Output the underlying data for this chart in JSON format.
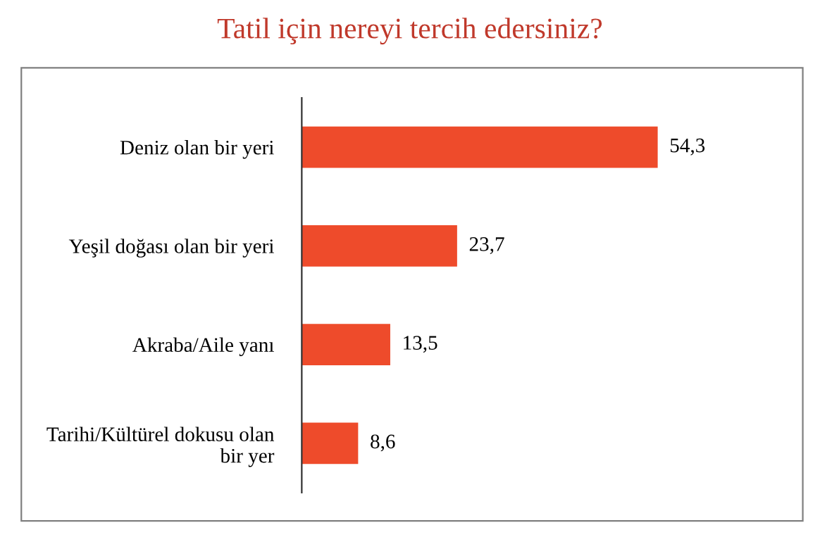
{
  "chart_data": {
    "type": "bar",
    "orientation": "horizontal",
    "title": "Tatil için nereyi tercih edersiniz?",
    "categories": [
      "Deniz olan bir yeri",
      "Yeşil doğası olan bir yeri",
      "Akraba/Aile yanı",
      "Tarihi/Kültürel dokusu olan\nbir yer"
    ],
    "values": [
      54.3,
      23.7,
      13.5,
      8.6
    ],
    "value_labels": [
      "54,3",
      "23,7",
      "13,5",
      "8,6"
    ],
    "color": "#ee4b2b",
    "grid": false,
    "legend": false
  }
}
